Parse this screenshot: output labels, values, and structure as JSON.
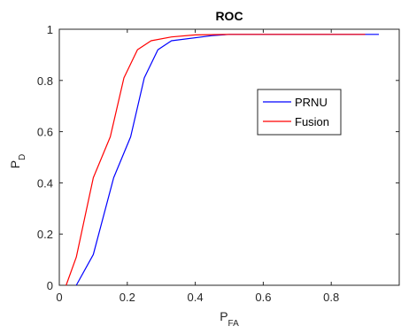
{
  "chart_data": {
    "type": "line",
    "title": "ROC",
    "xlabel": {
      "main": "P",
      "sub": "FA"
    },
    "ylabel": {
      "main": "P",
      "sub": "D"
    },
    "xlim": [
      0,
      1
    ],
    "ylim": [
      0,
      1
    ],
    "xticks": [
      "0",
      "0.2",
      "0.4",
      "0.6",
      "0.8"
    ],
    "xtick_values": [
      0,
      0.2,
      0.4,
      0.6,
      0.8
    ],
    "yticks": [
      "0",
      "0.2",
      "0.4",
      "0.6",
      "0.8",
      "1"
    ],
    "ytick_values": [
      0,
      0.2,
      0.4,
      0.6,
      0.8,
      1
    ],
    "grid": false,
    "legend_placement": "right-middle",
    "series": [
      {
        "name": "PRNU",
        "color": "#0000ff",
        "x": [
          0.05,
          0.1,
          0.16,
          0.21,
          0.25,
          0.29,
          0.33,
          0.45,
          0.5,
          0.94
        ],
        "y": [
          0.0,
          0.12,
          0.42,
          0.58,
          0.81,
          0.92,
          0.955,
          0.975,
          0.98,
          0.98
        ]
      },
      {
        "name": "Fusion",
        "color": "#ff0000",
        "x": [
          0.02,
          0.05,
          0.1,
          0.15,
          0.19,
          0.23,
          0.27,
          0.33,
          0.4,
          0.5,
          0.9
        ],
        "y": [
          0.0,
          0.11,
          0.42,
          0.58,
          0.81,
          0.92,
          0.955,
          0.97,
          0.978,
          0.98,
          0.98
        ]
      }
    ]
  }
}
